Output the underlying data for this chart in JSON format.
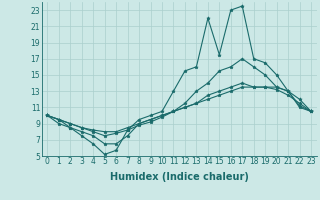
{
  "background_color": "#cce8e6",
  "grid_color": "#aacfcd",
  "line_color": "#1a6b6b",
  "xlabel": "Humidex (Indice chaleur)",
  "xlim": [
    -0.5,
    23.5
  ],
  "ylim": [
    5,
    24
  ],
  "yticks": [
    5,
    7,
    9,
    11,
    13,
    15,
    17,
    19,
    21,
    23
  ],
  "xticks": [
    0,
    1,
    2,
    3,
    4,
    5,
    6,
    7,
    8,
    9,
    10,
    11,
    12,
    13,
    14,
    15,
    16,
    17,
    18,
    19,
    20,
    21,
    22,
    23
  ],
  "series": [
    [
      10,
      9,
      8.5,
      7.5,
      6.5,
      5.2,
      5.7,
      8.2,
      9.5,
      10,
      10.5,
      13,
      15.5,
      16,
      22,
      17.5,
      23,
      23.5,
      17,
      16.5,
      15,
      13,
      11.2,
      10.5
    ],
    [
      10,
      9.5,
      8.5,
      8.0,
      7.5,
      6.5,
      6.5,
      7.5,
      9.0,
      9.5,
      10,
      10.5,
      11.5,
      13,
      14,
      15.5,
      16,
      17,
      16,
      15,
      13.5,
      13,
      11,
      10.5
    ],
    [
      10,
      9.5,
      9.0,
      8.5,
      8.0,
      7.5,
      7.8,
      8.2,
      8.8,
      9.2,
      9.8,
      10.5,
      11,
      11.5,
      12.5,
      13,
      13.5,
      14,
      13.5,
      13.5,
      13.2,
      12.5,
      11.5,
      10.5
    ],
    [
      10,
      9.5,
      9.0,
      8.5,
      8.2,
      8.0,
      8.0,
      8.5,
      9.0,
      9.5,
      10,
      10.5,
      11,
      11.5,
      12,
      12.5,
      13,
      13.5,
      13.5,
      13.5,
      13.5,
      13,
      12,
      10.5
    ]
  ],
  "figsize": [
    3.2,
    2.0
  ],
  "dpi": 100,
  "tick_fontsize": 5.5,
  "xlabel_fontsize": 7.0
}
